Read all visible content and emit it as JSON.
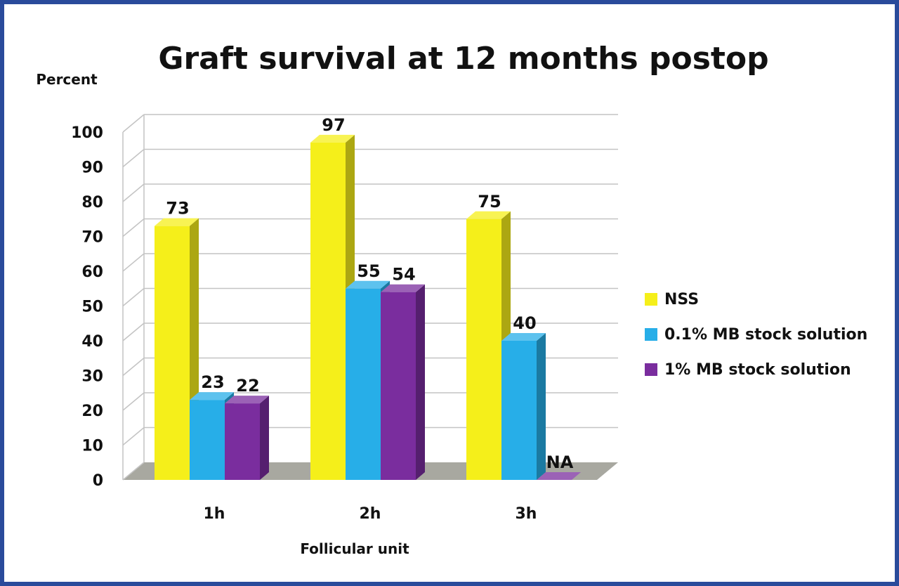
{
  "chart_data": {
    "type": "bar",
    "title": "Graft survival at 12 months postop",
    "ylabel": "Percent",
    "xlabel": "Follicular unit",
    "categories": [
      "1h",
      "2h",
      "3h"
    ],
    "ylim": [
      0,
      100
    ],
    "yticks": [
      0,
      10,
      20,
      30,
      40,
      50,
      60,
      70,
      80,
      90,
      100
    ],
    "grid": true,
    "legend_position": "right",
    "series": [
      {
        "name": "NSS",
        "color": "#f5ef1a",
        "values": [
          73,
          97,
          75
        ],
        "labels": [
          "73",
          "97",
          "75"
        ]
      },
      {
        "name": "0.1% MB stock solution",
        "color": "#27aee8",
        "values": [
          23,
          55,
          40
        ],
        "labels": [
          "23",
          "55",
          "40"
        ]
      },
      {
        "name": "1% MB stock solution",
        "color": "#7a2d9e",
        "values": [
          22,
          54,
          0
        ],
        "labels": [
          "22",
          "54",
          "NA"
        ]
      }
    ]
  }
}
